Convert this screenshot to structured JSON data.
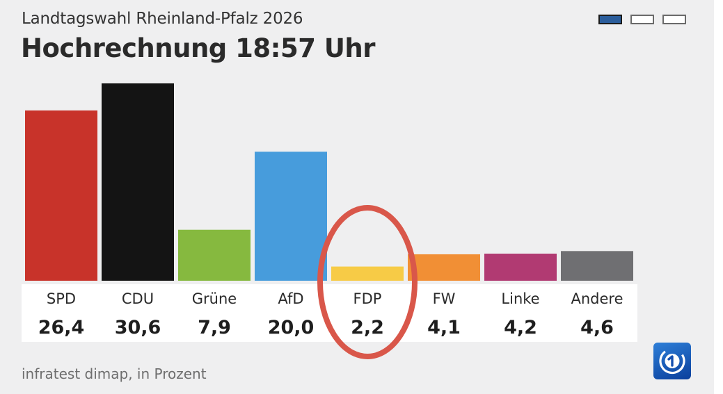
{
  "header": {
    "subtitle": "Landtagswahl Rheinland-Pfalz 2026",
    "title": "Hochrechnung 18:57 Uhr"
  },
  "pager": {
    "pages": 3,
    "active_index": 0
  },
  "chart_data": {
    "type": "bar",
    "title": "Hochrechnung 18:57 Uhr",
    "subtitle": "Landtagswahl Rheinland-Pfalz 2026",
    "categories": [
      "SPD",
      "CDU",
      "Grüne",
      "AfD",
      "FDP",
      "FW",
      "Linke",
      "Andere"
    ],
    "values": [
      26.4,
      30.6,
      7.9,
      20.0,
      2.2,
      4.1,
      4.2,
      4.6
    ],
    "value_labels": [
      "26,4",
      "30,6",
      "7,9",
      "20,0",
      "2,2",
      "4,1",
      "4,2",
      "4,6"
    ],
    "colors": [
      "#c8332a",
      "#141414",
      "#86b93f",
      "#479cdc",
      "#f7cb46",
      "#f18f35",
      "#b13a72",
      "#6f6f72"
    ],
    "ylim": [
      0,
      30.6
    ],
    "xlabel": "",
    "ylabel": "",
    "grid": false,
    "highlight": {
      "category": "FDP",
      "shape": "ellipse",
      "color": "#d9574a"
    }
  },
  "footer": {
    "source": "infratest dimap, in Prozent",
    "logo_icon": "ard-tagesschau-logo"
  }
}
